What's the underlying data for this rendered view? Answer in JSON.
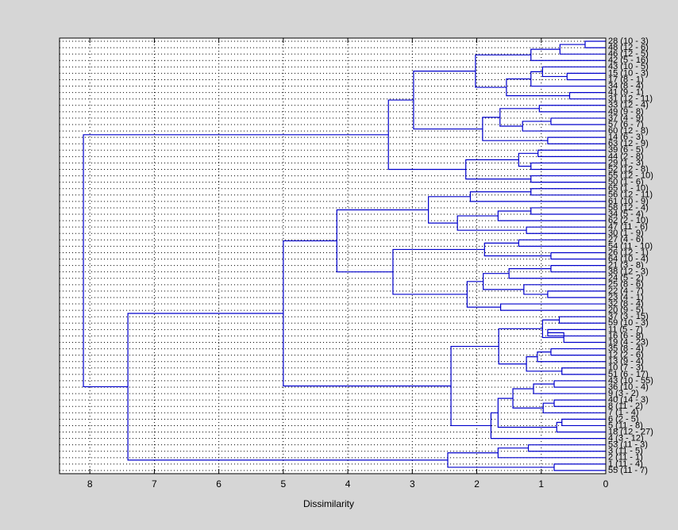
{
  "chart_data": {
    "type": "dendrogram",
    "xlabel": "Dissimilarity",
    "color": "#0000cc",
    "xlim": [
      0,
      8.47
    ],
    "xticks": [
      0,
      1,
      2,
      3,
      4,
      5,
      6,
      7,
      8
    ],
    "reversed_x": true,
    "grid": true,
    "tree": [
      8.1,
      [
        3.37,
        [
          2.98,
          [
            2.02,
            [
              1.16,
              [
                0.71,
                [
                  0.32,
                  "28 (10 - 3)",
                  "48 (12 - 6)"
                ],
                "46 (12 - 5)"
              ],
              "42 (5 - 16)"
            ],
            [
              1.54,
              [
                1.16,
                [
                  0.98,
                  "43 (10 - 5)",
                  [
                    0.6,
                    "15 (10 - 3)",
                    "17 (8 - 1)"
                  ]
                ],
                "34 (8 - 4)"
              ],
              [
                0.56,
                "41 (9 - 1)",
                "31 (12 - 11)"
              ]
            ]
          ],
          [
            1.91,
            [
              1.64,
              [
                1.03,
                "33 (12 - 4)",
                "49 (9 - 8)"
              ],
              [
                1.29,
                [
                  0.85,
                  "37 (4 - 9)",
                  "57 (6 - 7)"
                ],
                "60 (12 - 8)"
              ]
            ],
            [
              0.9,
              "14 (6 - 3)",
              "63 (12 - 9)"
            ]
          ]
        ],
        [
          2.17,
          [
            1.35,
            [
              1.05,
              "39 (6 - 5)",
              "44 (2 - 8)"
            ],
            [
              1.16,
              "29 (1 - 3)",
              "52 (12 - 8)"
            ]
          ],
          [
            1.16,
            "55 (12 - 10)",
            "50 (1 - 6)"
          ]
        ]
      ],
      [
        7.41,
        [
          5.0,
          [
            4.17,
            [
              2.75,
              [
                2.1,
                [
                  1.16,
                  "65 (1 - 10)",
                  "56 (12 - 11)"
                ],
                "61 (10 - 9)"
              ],
              [
                2.3,
                [
                  1.67,
                  [
                    1.16,
                    "58 (12 - 4)",
                    "34 (5 - 4)"
                  ],
                  "62 (2 - 10)"
                ],
                [
                  1.23,
                  "47 (11 - 6)",
                  "30 (1 - 9)"
                ]
              ]
            ],
            [
              3.3,
              [
                1.88,
                [
                  1.35,
                  "27 (4 - 6)",
                  "54 (11 - 10)"
                ],
                [
                  0.85,
                  "26 (12 - 1)",
                  "64 (10 - 4)"
                ]
              ],
              [
                2.15,
                [
                  1.9,
                  [
                    1.5,
                    [
                      0.85,
                      "21 (3 - 8)",
                      "38 (12 - 3)"
                    ],
                    "24 (5 - 2)"
                  ],
                  [
                    1.27,
                    "25 (8 - 6)",
                    [
                      0.9,
                      "22 (4 - 7)",
                      "23 (4 - 1)"
                    ]
                  ]
                ],
                [
                  1.63,
                  "32 (8 - 4)",
                  "20 (9 - 5)"
                ]
              ]
            ]
          ],
          [
            2.4,
            [
              1.66,
              [
                0.98,
                [
                  0.72,
                  "37 (3 - 15)",
                  "59 (10 - 3)"
                ],
                [
                  0.65,
                  [
                    0.9,
                    "11 (5 - 7)",
                    "16 (6 - 8)"
                  ],
                  "19 (4 - 23)"
                ]
              ],
              [
                1.23,
                [
                  1.06,
                  [
                    0.85,
                    "35 (8 - 4)",
                    "12 (2 - 6)"
                  ],
                  "13 (9 - 4)"
                ],
                [
                  0.68,
                  "10 (7 - 3)",
                  "51 (6 - 17)"
                ]
              ]
            ],
            [
              1.78,
              [
                1.67,
                [
                  1.44,
                  [
                    1.12,
                    [
                      0.8,
                      "43 (10 - 55)",
                      "36 (10 - 4)"
                    ],
                    "9 (3 - 2)"
                  ],
                  [
                    0.97,
                    [
                      0.8,
                      "40 (14 - 3)",
                      "8 (11 - 2)"
                    ],
                    "7 (1 - 4)"
                  ]
                ],
                [
                  0.76,
                  [
                    0.68,
                    "6 (2 - 5)",
                    "5 (11 - 8)"
                  ],
                  "18 (12 - 27)"
                ]
              ],
              "4 (3 - 12)"
            ]
          ]
        ],
        [
          2.45,
          [
            1.67,
            [
              1.2,
              "53 (11 - 3)",
              "3 (11 - 5)"
            ],
            "2 (11 - 1)"
          ],
          [
            0.8,
            "1 (11 - 4)",
            "55 (11 - 7)"
          ]
        ]
      ]
    ]
  }
}
